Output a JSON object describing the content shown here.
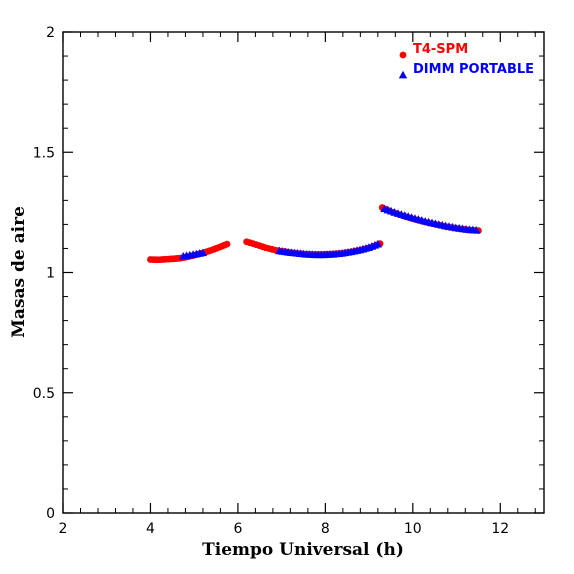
{
  "chart_data": {
    "type": "scatter",
    "xlabel": "Tiempo Universal (h)",
    "ylabel": "Masas de aire",
    "xlim": [
      2,
      13
    ],
    "ylim": [
      0,
      2
    ],
    "x_ticks": [
      2,
      4,
      6,
      8,
      10,
      12
    ],
    "x_tick_labels": [
      "2",
      "4",
      "6",
      "8",
      "10",
      "12"
    ],
    "y_ticks": [
      0,
      0.5,
      1,
      1.5,
      2
    ],
    "y_tick_labels": [
      "0",
      "0.5",
      "1",
      "1.5",
      "2"
    ],
    "x_minor_step": 0.4,
    "y_minor_step": 0.1,
    "grid": false,
    "legend_position": "top-right",
    "series": [
      {
        "name": "T4-SPM",
        "marker": "circle",
        "color": "#ff0000",
        "segments": [
          {
            "x_start": 4.0,
            "x_end": 5.75,
            "y": [
              1.054,
              1.053,
              1.055,
              1.057,
              1.06,
              1.066,
              1.074,
              1.083,
              1.093,
              1.105,
              1.118
            ]
          },
          {
            "x_start": 6.2,
            "x_end": 9.25,
            "y": [
              1.128,
              1.116,
              1.103,
              1.093,
              1.087,
              1.081,
              1.077,
              1.075,
              1.075,
              1.077,
              1.08,
              1.086,
              1.094,
              1.104,
              1.12
            ]
          },
          {
            "x_start": 9.3,
            "x_end": 11.5,
            "y": [
              1.27,
              1.25,
              1.235,
              1.222,
              1.21,
              1.2,
              1.19,
              1.183,
              1.177,
              1.174
            ]
          }
        ]
      },
      {
        "name": "DIMM PORTABLE",
        "marker": "triangle",
        "color": "#0000ff",
        "segments": [
          {
            "x_start": 4.75,
            "x_end": 5.2,
            "y": [
              1.068,
              1.075,
              1.082
            ]
          },
          {
            "x_start": 6.95,
            "x_end": 9.2,
            "y": [
              1.09,
              1.084,
              1.08,
              1.076,
              1.074,
              1.074,
              1.076,
              1.08,
              1.086,
              1.094,
              1.104,
              1.118
            ]
          },
          {
            "x_start": 9.35,
            "x_end": 11.45,
            "y": [
              1.265,
              1.25,
              1.237,
              1.225,
              1.213,
              1.203,
              1.194,
              1.186,
              1.18,
              1.176
            ]
          }
        ]
      }
    ]
  }
}
